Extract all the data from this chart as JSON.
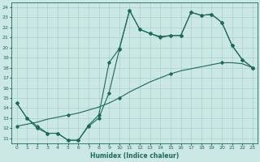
{
  "lineA_x": [
    0,
    1,
    2,
    3,
    4,
    5,
    6,
    7,
    8,
    9,
    10,
    11,
    12,
    13,
    14,
    15,
    16,
    17,
    18,
    19,
    20,
    21,
    22,
    23
  ],
  "lineA_y": [
    14.5,
    13.0,
    12.2,
    11.5,
    11.5,
    10.8,
    10.8,
    12.2,
    13.0,
    15.5,
    19.8,
    23.7,
    21.8,
    21.4,
    21.0,
    21.2,
    21.2,
    23.5,
    23.2,
    23.3,
    22.5,
    20.2,
    18.8,
    18.0
  ],
  "lineB_x": [
    0,
    1,
    2,
    3,
    4,
    5,
    6,
    7,
    8,
    9,
    10,
    11,
    12,
    13,
    14,
    15,
    16,
    17,
    18,
    19,
    20,
    21,
    22,
    23
  ],
  "lineB_y": [
    12.2,
    12.4,
    12.6,
    12.9,
    13.1,
    13.3,
    13.5,
    13.8,
    14.1,
    14.5,
    15.0,
    15.6,
    16.1,
    16.6,
    17.0,
    17.4,
    17.7,
    17.9,
    18.1,
    18.3,
    18.5,
    18.5,
    18.4,
    18.0
  ],
  "lineC_x": [
    0,
    1,
    2,
    3,
    4,
    5,
    6,
    7,
    8,
    9,
    10,
    11,
    12,
    13,
    14,
    15,
    16,
    17,
    18,
    19,
    20,
    21,
    22,
    23
  ],
  "lineC_y": [
    14.5,
    13.0,
    12.0,
    11.5,
    11.5,
    10.8,
    10.8,
    12.3,
    13.3,
    18.5,
    19.9,
    23.7,
    21.8,
    21.4,
    21.1,
    21.2,
    21.2,
    23.5,
    23.2,
    23.3,
    22.5,
    20.2,
    18.8,
    18.0
  ],
  "color": "#1a6b5a",
  "bg_color": "#cce8e4",
  "grid_color": "#9dccc6",
  "xlabel": "Humidex (Indice chaleur)",
  "xlim": [
    -0.5,
    23.5
  ],
  "ylim": [
    10.5,
    24.5
  ],
  "xticks": [
    0,
    1,
    2,
    3,
    4,
    5,
    6,
    7,
    8,
    9,
    10,
    11,
    12,
    13,
    14,
    15,
    16,
    17,
    18,
    19,
    20,
    21,
    22,
    23
  ],
  "yticks": [
    11,
    12,
    13,
    14,
    15,
    16,
    17,
    18,
    19,
    20,
    21,
    22,
    23,
    24
  ],
  "markerA_idx": [
    0,
    1,
    2,
    3,
    4,
    5,
    6,
    7,
    8,
    9,
    10,
    11,
    12,
    13,
    14,
    15,
    16,
    17,
    18,
    19,
    20,
    21,
    22,
    23
  ],
  "markerB_idx": [
    0,
    5,
    10,
    15,
    20,
    23
  ],
  "markerC_idx": [
    0,
    1,
    2,
    3,
    4,
    5,
    6,
    7,
    8,
    9,
    10,
    11,
    12,
    13,
    14,
    15,
    16,
    17,
    18,
    19,
    20,
    21,
    22,
    23
  ]
}
